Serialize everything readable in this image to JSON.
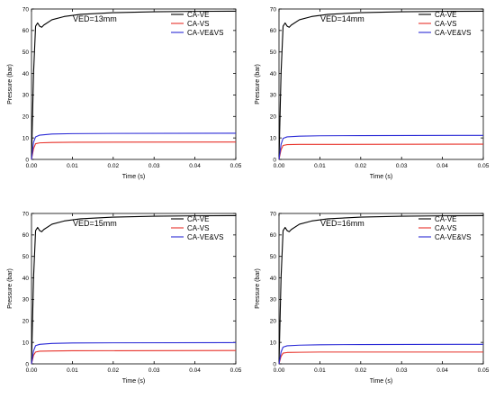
{
  "chart_data": [
    {
      "type": "line",
      "title": "VED=13mm",
      "xlabel": "Time (s)",
      "ylabel": "Pressure (bar)",
      "xlim": [
        0,
        0.05
      ],
      "ylim": [
        0,
        70
      ],
      "xticks": [
        "0.00",
        "0.01",
        "0.02",
        "0.03",
        "0.04",
        "0.05"
      ],
      "yticks": [
        "0",
        "10",
        "20",
        "30",
        "40",
        "50",
        "60",
        "70"
      ],
      "legend_position": "top-right",
      "series": [
        {
          "name": "CA-VE",
          "color": "#000000",
          "points": [
            [
              0,
              0
            ],
            [
              0.0005,
              40
            ],
            [
              0.001,
              62
            ],
            [
              0.0015,
              63.5
            ],
            [
              0.002,
              62
            ],
            [
              0.0025,
              61.5
            ],
            [
              0.003,
              62.5
            ],
            [
              0.005,
              65
            ],
            [
              0.008,
              66.5
            ],
            [
              0.012,
              67.5
            ],
            [
              0.02,
              68.3
            ],
            [
              0.03,
              68.7
            ],
            [
              0.04,
              68.9
            ],
            [
              0.05,
              69
            ]
          ]
        },
        {
          "name": "CA-VS",
          "color": "#e8322a",
          "points": [
            [
              0,
              0
            ],
            [
              0.0005,
              5
            ],
            [
              0.001,
              7.3
            ],
            [
              0.002,
              7.7
            ],
            [
              0.005,
              7.9
            ],
            [
              0.01,
              8
            ],
            [
              0.05,
              8.1
            ]
          ]
        },
        {
          "name": "CA-VE&VS",
          "color": "#2a2ad6",
          "points": [
            [
              0,
              0
            ],
            [
              0.0005,
              8
            ],
            [
              0.001,
              10.5
            ],
            [
              0.002,
              11.3
            ],
            [
              0.005,
              11.8
            ],
            [
              0.01,
              12
            ],
            [
              0.02,
              12.1
            ],
            [
              0.05,
              12.2
            ]
          ]
        }
      ]
    },
    {
      "type": "line",
      "title": "VED=14mm",
      "xlabel": "Time (s)",
      "ylabel": "Pressure (bar)",
      "xlim": [
        0,
        0.05
      ],
      "ylim": [
        0,
        70
      ],
      "xticks": [
        "0.00",
        "0.01",
        "0.02",
        "0.03",
        "0.04",
        "0.05"
      ],
      "yticks": [
        "0",
        "10",
        "20",
        "30",
        "40",
        "50",
        "60",
        "70"
      ],
      "legend_position": "top-right",
      "series": [
        {
          "name": "CA-VE",
          "color": "#000000",
          "points": [
            [
              0,
              0
            ],
            [
              0.0005,
              40
            ],
            [
              0.001,
              62
            ],
            [
              0.0015,
              63.5
            ],
            [
              0.002,
              62
            ],
            [
              0.0025,
              61.5
            ],
            [
              0.003,
              62.5
            ],
            [
              0.005,
              65
            ],
            [
              0.008,
              66.5
            ],
            [
              0.012,
              67.5
            ],
            [
              0.02,
              68.3
            ],
            [
              0.03,
              68.7
            ],
            [
              0.04,
              68.9
            ],
            [
              0.05,
              69
            ]
          ]
        },
        {
          "name": "CA-VS",
          "color": "#e8322a",
          "points": [
            [
              0,
              0
            ],
            [
              0.0005,
              4.5
            ],
            [
              0.001,
              6.5
            ],
            [
              0.002,
              6.9
            ],
            [
              0.005,
              7
            ],
            [
              0.01,
              7
            ],
            [
              0.05,
              7.1
            ]
          ]
        },
        {
          "name": "CA-VE&VS",
          "color": "#2a2ad6",
          "points": [
            [
              0,
              0
            ],
            [
              0.0005,
              7
            ],
            [
              0.001,
              9.8
            ],
            [
              0.002,
              10.5
            ],
            [
              0.005,
              10.8
            ],
            [
              0.01,
              11
            ],
            [
              0.02,
              11.1
            ],
            [
              0.05,
              11.2
            ]
          ]
        }
      ]
    },
    {
      "type": "line",
      "title": "VED=15mm",
      "xlabel": "Time (s)",
      "ylabel": "Pressure (bar)",
      "xlim": [
        0,
        0.05
      ],
      "ylim": [
        0,
        70
      ],
      "xticks": [
        "0.00",
        "0.01",
        "0.02",
        "0.03",
        "0.04",
        "0.05"
      ],
      "yticks": [
        "0",
        "10",
        "20",
        "30",
        "40",
        "50",
        "60",
        "70"
      ],
      "legend_position": "top-right",
      "series": [
        {
          "name": "CA-VE",
          "color": "#000000",
          "points": [
            [
              0,
              0
            ],
            [
              0.0005,
              40
            ],
            [
              0.001,
              62
            ],
            [
              0.0015,
              63.5
            ],
            [
              0.002,
              62
            ],
            [
              0.0025,
              61.5
            ],
            [
              0.003,
              62.5
            ],
            [
              0.005,
              65
            ],
            [
              0.008,
              66.5
            ],
            [
              0.012,
              67.5
            ],
            [
              0.02,
              68.3
            ],
            [
              0.03,
              68.7
            ],
            [
              0.04,
              68.9
            ],
            [
              0.05,
              69
            ]
          ]
        },
        {
          "name": "CA-VS",
          "color": "#e8322a",
          "points": [
            [
              0,
              0
            ],
            [
              0.0005,
              4
            ],
            [
              0.001,
              5.5
            ],
            [
              0.002,
              5.9
            ],
            [
              0.005,
              6
            ],
            [
              0.01,
              6.1
            ],
            [
              0.05,
              6.2
            ]
          ]
        },
        {
          "name": "CA-VE&VS",
          "color": "#2a2ad6",
          "points": [
            [
              0,
              0
            ],
            [
              0.0005,
              6
            ],
            [
              0.001,
              8.5
            ],
            [
              0.002,
              9.1
            ],
            [
              0.005,
              9.5
            ],
            [
              0.01,
              9.7
            ],
            [
              0.02,
              9.8
            ],
            [
              0.05,
              9.9
            ]
          ]
        }
      ]
    },
    {
      "type": "line",
      "title": "VED=16mm",
      "xlabel": "Time (s)",
      "ylabel": "Pressure (bar)",
      "xlim": [
        0,
        0.05
      ],
      "ylim": [
        0,
        70
      ],
      "xticks": [
        "0.00",
        "0.01",
        "0.02",
        "0.03",
        "0.04",
        "0.05"
      ],
      "yticks": [
        "0",
        "10",
        "20",
        "30",
        "40",
        "50",
        "60",
        "70"
      ],
      "legend_position": "top-right",
      "series": [
        {
          "name": "CA-VE",
          "color": "#000000",
          "points": [
            [
              0,
              0
            ],
            [
              0.0005,
              40
            ],
            [
              0.001,
              62
            ],
            [
              0.0015,
              63.5
            ],
            [
              0.002,
              62
            ],
            [
              0.0025,
              61.5
            ],
            [
              0.003,
              62.5
            ],
            [
              0.005,
              65
            ],
            [
              0.008,
              66.5
            ],
            [
              0.012,
              67.5
            ],
            [
              0.02,
              68.3
            ],
            [
              0.03,
              68.7
            ],
            [
              0.04,
              68.9
            ],
            [
              0.05,
              69
            ]
          ]
        },
        {
          "name": "CA-VS",
          "color": "#e8322a",
          "points": [
            [
              0,
              0
            ],
            [
              0.0005,
              3.5
            ],
            [
              0.001,
              5
            ],
            [
              0.002,
              5.3
            ],
            [
              0.005,
              5.4
            ],
            [
              0.01,
              5.5
            ],
            [
              0.05,
              5.5
            ]
          ]
        },
        {
          "name": "CA-VE&VS",
          "color": "#2a2ad6",
          "points": [
            [
              0,
              0
            ],
            [
              0.0005,
              5.5
            ],
            [
              0.001,
              7.8
            ],
            [
              0.002,
              8.4
            ],
            [
              0.005,
              8.7
            ],
            [
              0.01,
              8.9
            ],
            [
              0.02,
              9
            ],
            [
              0.05,
              9.1
            ]
          ]
        }
      ]
    }
  ]
}
